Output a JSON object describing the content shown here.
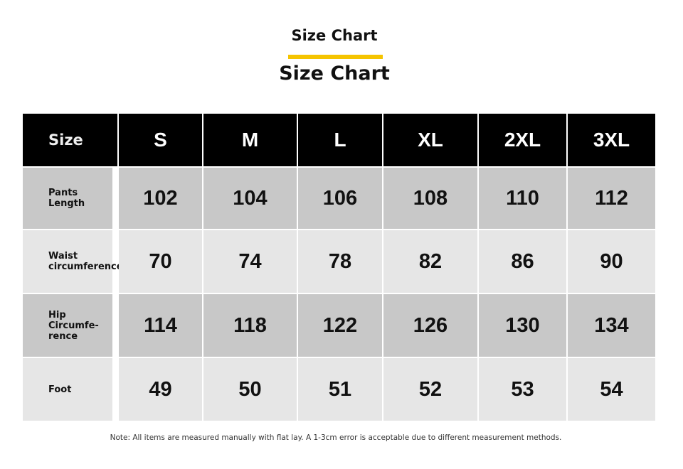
{
  "title_small": "Size Chart",
  "title_large": "Size Chart",
  "accent_color": "#f5c400",
  "header": [
    "Size",
    "S",
    "M",
    "L",
    "XL",
    "2XL",
    "3XL"
  ],
  "rows": [
    {
      "label": "Pants Length",
      "values": [
        "102",
        "104",
        "106",
        "108",
        "110",
        "112"
      ]
    },
    {
      "label": "Waist circumference",
      "values": [
        "70",
        "74",
        "78",
        "82",
        "86",
        "90"
      ]
    },
    {
      "label": "Hip Circumfe-rence",
      "values": [
        "114",
        "118",
        "122",
        "126",
        "130",
        "134"
      ]
    },
    {
      "label": "Foot",
      "values": [
        "49",
        "50",
        "51",
        "52",
        "53",
        "54"
      ]
    }
  ],
  "note": "Note: All items are measured manually with flat lay. A 1-3cm error is acceptable due to different measurement methods."
}
